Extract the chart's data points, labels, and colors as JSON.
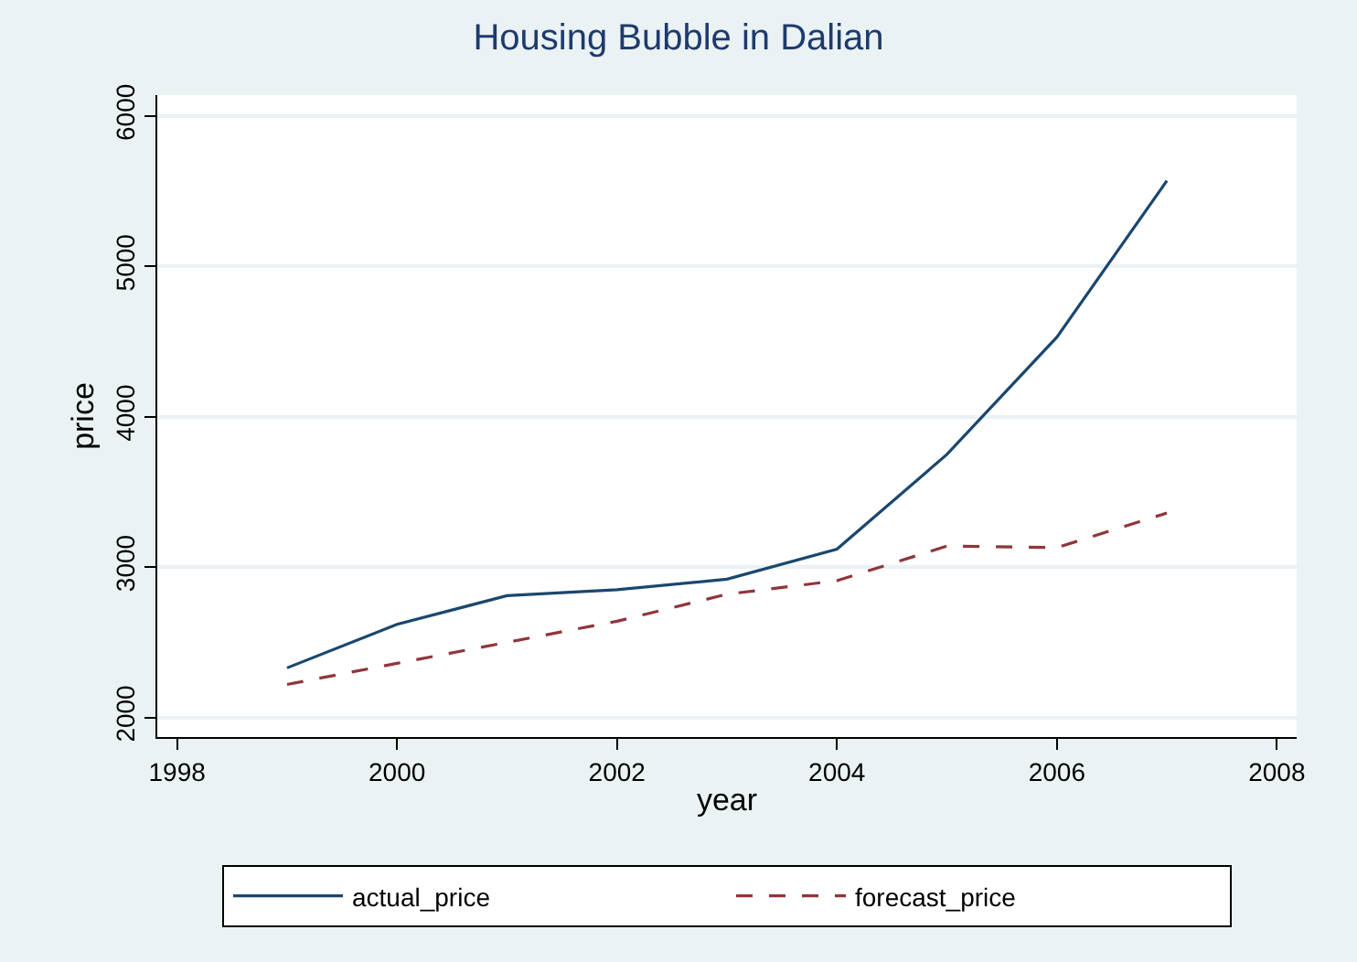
{
  "chart_data": {
    "type": "line",
    "title": "Housing Bubble in Dalian",
    "xlabel": "year",
    "ylabel": "price",
    "x": [
      1999,
      2000,
      2001,
      2002,
      2003,
      2004,
      2005,
      2006,
      2007
    ],
    "series": [
      {
        "name": "actual_price",
        "color": "#1a476f",
        "line_style": "solid",
        "values": [
          2330,
          2620,
          2810,
          2850,
          2920,
          3120,
          3750,
          4530,
          5570
        ]
      },
      {
        "name": "forecast_price",
        "color": "#90353b",
        "line_style": "dashed",
        "values": [
          2220,
          2360,
          2500,
          2640,
          2820,
          2910,
          3140,
          3130,
          3360
        ]
      }
    ],
    "xlim": [
      1997.82,
      2008.18
    ],
    "xticks": [
      1998,
      2000,
      2002,
      2004,
      2006,
      2008
    ],
    "ylim": [
      1870,
      6140
    ],
    "yticks": [
      2000,
      3000,
      4000,
      5000,
      6000
    ],
    "grid": "y",
    "legend": "bottom",
    "marker": "none"
  }
}
